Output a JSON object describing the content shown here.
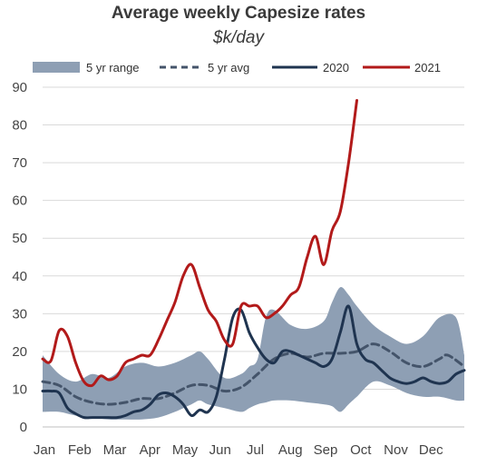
{
  "chart_data": {
    "type": "line",
    "title": "Average weekly Capesize rates",
    "subtitle": "$k/day",
    "xlabel": "",
    "ylabel": "",
    "ylim": [
      0,
      90
    ],
    "yticks": [
      0,
      10,
      20,
      30,
      40,
      50,
      60,
      70,
      80,
      90
    ],
    "xticks": [
      "Jan",
      "Feb",
      "Mar",
      "Apr",
      "May",
      "Jun",
      "Jul",
      "Aug",
      "Sep",
      "Oct",
      "Nov",
      "Dec"
    ],
    "x_units": "week",
    "grid": "horizontal",
    "legend_position": "top",
    "colors": {
      "range": "#8e9fb4",
      "avg": "#44546a",
      "y2020": "#1f3450",
      "y2021": "#b21a1a"
    },
    "legend": [
      "5 yr range",
      "5 yr avg",
      "2020",
      "2021"
    ],
    "range": {
      "name": "5 yr range",
      "x": [
        1,
        3,
        5,
        7,
        9,
        11,
        13,
        15,
        17,
        19,
        20,
        21,
        23,
        25,
        26,
        27,
        28,
        29,
        31,
        33,
        35,
        36,
        37,
        38,
        39,
        41,
        43,
        45,
        47,
        49,
        51,
        52
      ],
      "low": [
        4,
        4,
        3,
        2.5,
        2,
        2,
        2,
        2.5,
        4,
        6,
        7,
        6,
        5,
        4,
        5,
        6,
        6.5,
        7,
        7,
        6.5,
        6,
        5.5,
        4,
        6,
        8,
        12,
        11,
        9,
        8,
        8,
        7,
        7
      ],
      "high": [
        19,
        14,
        12,
        14,
        13,
        16,
        17,
        16,
        17,
        19,
        20,
        18,
        13,
        14,
        16,
        18,
        29,
        31,
        27,
        26,
        28,
        33,
        37,
        35,
        32,
        27,
        24,
        22,
        24,
        29,
        29,
        19
      ]
    },
    "series": [
      {
        "name": "5 yr avg",
        "x": [
          1,
          3,
          5,
          7,
          9,
          11,
          13,
          15,
          17,
          19,
          21,
          23,
          25,
          27,
          29,
          31,
          33,
          35,
          37,
          39,
          41,
          43,
          45,
          47,
          49,
          50,
          52
        ],
        "values": [
          12,
          11,
          8,
          6.5,
          6,
          6.5,
          7.5,
          7.5,
          9,
          11,
          11,
          9.5,
          10.5,
          14,
          18,
          19.5,
          18.5,
          19.5,
          19.5,
          20,
          22,
          20,
          17,
          16,
          18,
          19,
          16
        ]
      },
      {
        "name": "2020",
        "x": [
          1,
          2,
          3,
          4,
          5,
          6,
          7,
          8,
          9,
          10,
          11,
          12,
          13,
          14,
          15,
          16,
          17,
          18,
          19,
          20,
          21,
          22,
          23,
          24,
          25,
          26,
          27,
          28,
          29,
          30,
          31,
          32,
          33,
          34,
          35,
          36,
          37,
          38,
          39,
          40,
          41,
          42,
          43,
          44,
          45,
          46,
          47,
          48,
          49,
          50,
          51,
          52
        ],
        "values": [
          9.5,
          9.5,
          9,
          5,
          3.5,
          2.5,
          2.5,
          2.5,
          2.5,
          2.5,
          3,
          4,
          4.5,
          6,
          8.5,
          9,
          8,
          6,
          3,
          4.5,
          4,
          8,
          18,
          29,
          31,
          25,
          21,
          18,
          17,
          20,
          20,
          19,
          18,
          17,
          16,
          18,
          25,
          32,
          22,
          18,
          17,
          15,
          13,
          12,
          11.5,
          12,
          13,
          12,
          11.5,
          12,
          14,
          15
        ]
      },
      {
        "name": "2021",
        "x": [
          1,
          2,
          3,
          4,
          5,
          6,
          7,
          8,
          9,
          10,
          11,
          12,
          13,
          14,
          15,
          16,
          17,
          18,
          19,
          20,
          21,
          22,
          23,
          24,
          25,
          26,
          27,
          28,
          29,
          30,
          31,
          32,
          33,
          34,
          35,
          36,
          37,
          38,
          39
        ],
        "values": [
          18,
          17.5,
          25.5,
          24,
          17,
          12,
          11,
          13.5,
          12.5,
          13.5,
          17,
          18,
          19,
          19,
          23,
          28,
          33,
          40,
          43,
          37,
          31,
          28,
          23,
          22,
          32,
          32,
          32,
          29,
          30,
          32,
          35,
          37,
          45,
          50.5,
          43,
          52,
          57,
          70,
          86.5
        ]
      }
    ]
  }
}
